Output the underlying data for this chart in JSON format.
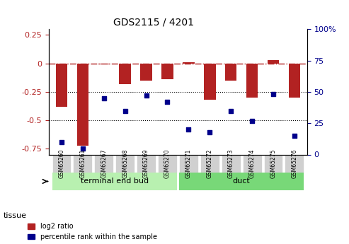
{
  "title": "GDS2115 / 4201",
  "samples": [
    "GSM65260",
    "GSM65261",
    "GSM65267",
    "GSM65268",
    "GSM65269",
    "GSM65270",
    "GSM65271",
    "GSM65272",
    "GSM65273",
    "GSM65274",
    "GSM65275",
    "GSM65276"
  ],
  "log2_ratio": [
    -0.38,
    -0.72,
    -0.01,
    -0.18,
    -0.15,
    -0.14,
    0.01,
    -0.32,
    -0.15,
    -0.3,
    0.03,
    -0.3
  ],
  "percentile_rank": [
    10,
    5,
    45,
    35,
    47,
    42,
    20,
    18,
    35,
    27,
    48,
    15
  ],
  "bar_color": "#b22222",
  "dot_color": "#00008b",
  "tissue_groups": [
    {
      "label": "terminal end bud",
      "start": 0,
      "end": 5,
      "color": "#90ee90"
    },
    {
      "label": "duct",
      "start": 6,
      "end": 11,
      "color": "#3cb371"
    }
  ],
  "ylim_left": [
    -0.8,
    0.3
  ],
  "ylim_right": [
    0,
    100
  ],
  "yticks_left": [
    -0.75,
    -0.5,
    -0.25,
    0,
    0.25
  ],
  "yticks_right": [
    0,
    25,
    50,
    75,
    100
  ],
  "hline_y": 0,
  "dotted_lines": [
    -0.25,
    -0.5
  ],
  "legend_log2": "log2 ratio",
  "legend_pct": "percentile rank within the sample",
  "tissue_label": "tissue",
  "background_color": "#ffffff"
}
